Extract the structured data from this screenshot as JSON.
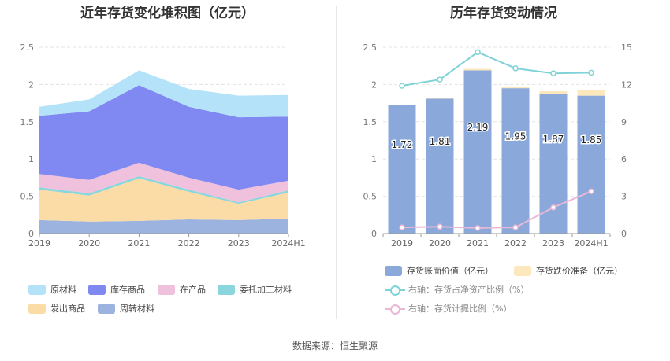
{
  "left": {
    "title": "近年存货变化堆积图（亿元）",
    "legend": [
      {
        "label": "原材料",
        "color": "#b4e3f9"
      },
      {
        "label": "库存商品",
        "color": "#8088f2"
      },
      {
        "label": "在产品",
        "color": "#f0c1dc"
      },
      {
        "label": "委托加工材料",
        "color": "#8ad6dc"
      },
      {
        "label": "发出商品",
        "color": "#fbdca6"
      },
      {
        "label": "周转材料",
        "color": "#9cb3e0"
      }
    ]
  },
  "right": {
    "title": "历年存货变动情况",
    "legend": [
      {
        "label": "存货账面价值（亿元）",
        "color": "#8aa8da",
        "kind": "box"
      },
      {
        "label": "存货跌价准备（亿元）",
        "color": "#fde7bd",
        "kind": "box"
      },
      {
        "label": "右轴：存货占净资产比例（%）",
        "color": "#7fd3d6",
        "kind": "ring"
      },
      {
        "label": "右轴：存货计提比例（%）",
        "color": "#e8b8d6",
        "kind": "ring"
      }
    ]
  },
  "source": "数据来源：恒生聚源",
  "chart_data": [
    {
      "type": "area",
      "stacked": true,
      "title": "近年存货变化堆积图（亿元）",
      "x": [
        "2019",
        "2020",
        "2021",
        "2022",
        "2023",
        "2024H1"
      ],
      "ylim": [
        0,
        2.5
      ],
      "yticks": [
        "0",
        "0.5",
        "1",
        "1.5",
        "2",
        "2.5"
      ],
      "grid": true,
      "legend_position": "bottom",
      "series": [
        {
          "name": "周转材料",
          "color": "#9cb3e0",
          "values": [
            0.18,
            0.16,
            0.17,
            0.19,
            0.18,
            0.2
          ]
        },
        {
          "name": "发出商品",
          "color": "#fbdca6",
          "values": [
            0.41,
            0.35,
            0.57,
            0.37,
            0.22,
            0.35
          ]
        },
        {
          "name": "委托加工材料",
          "color": "#8ad6dc",
          "values": [
            0.03,
            0.03,
            0.03,
            0.03,
            0.02,
            0.03
          ]
        },
        {
          "name": "在产品",
          "color": "#f0c1dc",
          "values": [
            0.18,
            0.18,
            0.18,
            0.16,
            0.17,
            0.13
          ]
        },
        {
          "name": "库存商品",
          "color": "#8088f2",
          "values": [
            0.78,
            0.92,
            1.04,
            0.95,
            0.97,
            0.86
          ]
        },
        {
          "name": "原材料",
          "color": "#b4e3f9",
          "values": [
            0.12,
            0.16,
            0.2,
            0.24,
            0.29,
            0.29
          ]
        }
      ]
    },
    {
      "type": "bar",
      "title": "历年存货变动情况",
      "categories": [
        "2019",
        "2020",
        "2021",
        "2022",
        "2023",
        "2024H1"
      ],
      "ylim": [
        0,
        2.5
      ],
      "yticks": [
        "0",
        "0.5",
        "1",
        "1.5",
        "2",
        "2.5"
      ],
      "y2lim": [
        0,
        15
      ],
      "y2ticks": [
        "0",
        "3",
        "6",
        "9",
        "12",
        "15"
      ],
      "grid": true,
      "legend_position": "bottom",
      "series": [
        {
          "name": "存货账面价值（亿元）",
          "color": "#8aa8da",
          "axis": "left",
          "stack": "bar",
          "values": [
            1.72,
            1.81,
            2.19,
            1.95,
            1.87,
            1.85
          ],
          "labels": [
            "1.72",
            "1.81",
            "2.19",
            "1.95",
            "1.87",
            "1.85"
          ]
        },
        {
          "name": "存货跌价准备（亿元）",
          "color": "#fde7bd",
          "axis": "left",
          "stack": "bar",
          "values": [
            0.01,
            0.01,
            0.02,
            0.02,
            0.04,
            0.07
          ]
        },
        {
          "name": "右轴：存货占净资产比例（%）",
          "color": "#7fd3d6",
          "axis": "right",
          "kind": "line",
          "values": [
            11.9,
            12.4,
            14.6,
            13.3,
            12.9,
            12.95
          ]
        },
        {
          "name": "右轴：存货计提比例（%）",
          "color": "#e8b8d6",
          "axis": "right",
          "kind": "line",
          "values": [
            0.5,
            0.55,
            0.45,
            0.5,
            2.1,
            3.4
          ]
        }
      ]
    }
  ]
}
